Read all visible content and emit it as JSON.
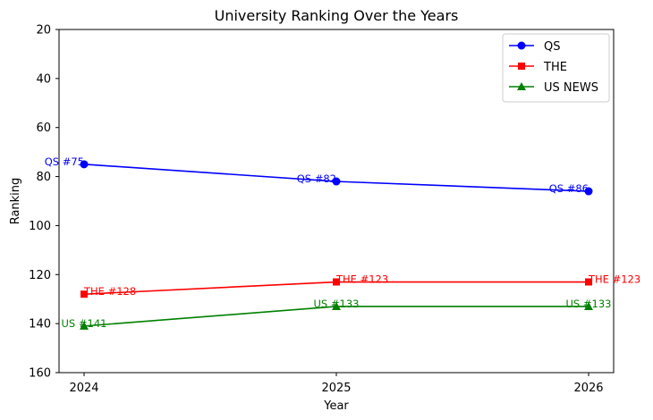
{
  "chart_data": {
    "type": "line",
    "title": "University Ranking Over the Years",
    "xlabel": "Year",
    "ylabel": "Ranking",
    "x": [
      "2024",
      "2025",
      "2026"
    ],
    "y_inverted": true,
    "ylim": [
      20,
      160
    ],
    "yticks": [
      20,
      40,
      60,
      80,
      100,
      120,
      140,
      160
    ],
    "grid": false,
    "legend_position": "top-right",
    "series": [
      {
        "name": "QS",
        "color": "#0000ff",
        "marker": "circle",
        "values": [
          75,
          82,
          86
        ],
        "labels": [
          "QS #75",
          "QS #82",
          "QS #86"
        ],
        "label_align": "end"
      },
      {
        "name": "THE",
        "color": "#ff0000",
        "marker": "square",
        "values": [
          128,
          123,
          123
        ],
        "labels": [
          "THE #128",
          "THE #123",
          "THE #123"
        ],
        "label_align": "start"
      },
      {
        "name": "US NEWS",
        "color": "#008000",
        "marker": "triangle",
        "values": [
          141,
          133,
          133
        ],
        "labels": [
          "US #141",
          "US #133",
          "US #133"
        ],
        "label_align": "middle"
      }
    ]
  }
}
